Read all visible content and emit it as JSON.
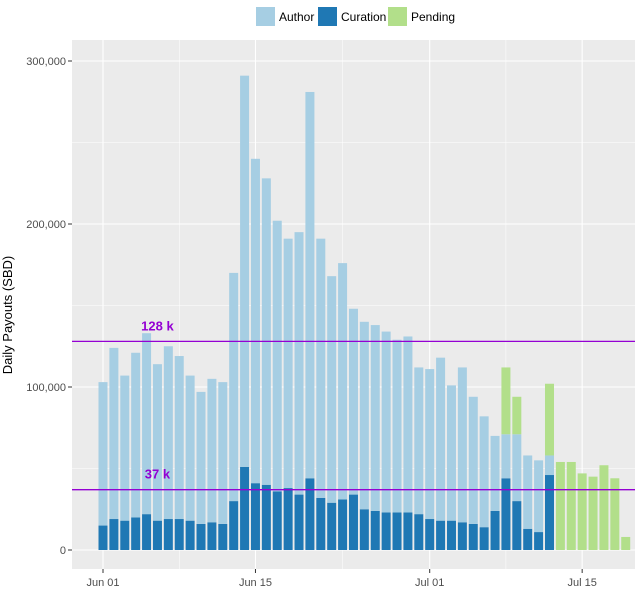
{
  "chart_data": {
    "type": "bar",
    "stacked": true,
    "title": "",
    "xlabel": "",
    "ylabel": "Daily Payouts (SBD)",
    "ylim": [
      0,
      300000
    ],
    "yticks": [
      0,
      100000,
      200000,
      300000
    ],
    "ytick_labels": [
      "0",
      "100,000",
      "200,000",
      "300,000"
    ],
    "xticks": [
      {
        "day": 1,
        "label": "Jun 01"
      },
      {
        "day": 15,
        "label": "Jun 15"
      },
      {
        "day": 31,
        "label": "Jul 01"
      },
      {
        "day": 45,
        "label": "Jul 15"
      }
    ],
    "grid": true,
    "legend": "top",
    "days": [
      1,
      2,
      3,
      4,
      5,
      6,
      7,
      8,
      9,
      10,
      11,
      12,
      13,
      14,
      15,
      16,
      17,
      18,
      19,
      20,
      21,
      22,
      23,
      24,
      25,
      26,
      27,
      28,
      29,
      30,
      31,
      32,
      33,
      34,
      35,
      36,
      37,
      38,
      39,
      40,
      41,
      42,
      43,
      44,
      45,
      46,
      47,
      48,
      49,
      50
    ],
    "series": [
      {
        "name": "Curation",
        "color": "#1f78b4",
        "values": [
          15000,
          19000,
          18000,
          20000,
          22000,
          18000,
          19000,
          19000,
          18000,
          16000,
          17000,
          16000,
          30000,
          51000,
          41000,
          40000,
          36000,
          38000,
          34000,
          44000,
          32000,
          29000,
          31000,
          34000,
          25000,
          24000,
          23000,
          23000,
          23000,
          22000,
          19000,
          18000,
          18000,
          17000,
          16000,
          14000,
          24000,
          44000,
          30000,
          13000,
          11000,
          46000,
          0,
          0,
          0,
          0,
          0,
          0,
          0,
          0
        ]
      },
      {
        "name": "Author",
        "color": "#a6cee3",
        "values": [
          88000,
          105000,
          89000,
          101000,
          111000,
          96000,
          106000,
          100000,
          89000,
          81000,
          88000,
          87000,
          140000,
          240000,
          199000,
          188000,
          166000,
          153000,
          161000,
          237000,
          159000,
          139000,
          145000,
          114000,
          115000,
          114000,
          111000,
          106000,
          108000,
          90000,
          92000,
          100000,
          83000,
          95000,
          78000,
          68000,
          46000,
          27000,
          41000,
          45000,
          44000,
          12000,
          0,
          0,
          0,
          0,
          0,
          0,
          0,
          0
        ]
      },
      {
        "name": "Pending",
        "color": "#b2df8a",
        "values": [
          0,
          0,
          0,
          0,
          0,
          0,
          0,
          0,
          0,
          0,
          0,
          0,
          0,
          0,
          0,
          0,
          0,
          0,
          0,
          0,
          0,
          0,
          0,
          0,
          0,
          0,
          0,
          0,
          0,
          0,
          0,
          0,
          0,
          0,
          0,
          0,
          0,
          41000,
          23000,
          0,
          0,
          44000,
          54000,
          54000,
          47000,
          45000,
          52000,
          44000,
          8000,
          0
        ]
      }
    ],
    "hlines": [
      {
        "value": 128000,
        "label": "128 k",
        "color": "#9400d3"
      },
      {
        "value": 37000,
        "label": "37 k",
        "color": "#9400d3"
      }
    ]
  },
  "legend": {
    "items": [
      {
        "name": "Author",
        "color": "#a6cee3"
      },
      {
        "name": "Curation",
        "color": "#1f78b4"
      },
      {
        "name": "Pending",
        "color": "#b2df8a"
      }
    ]
  }
}
